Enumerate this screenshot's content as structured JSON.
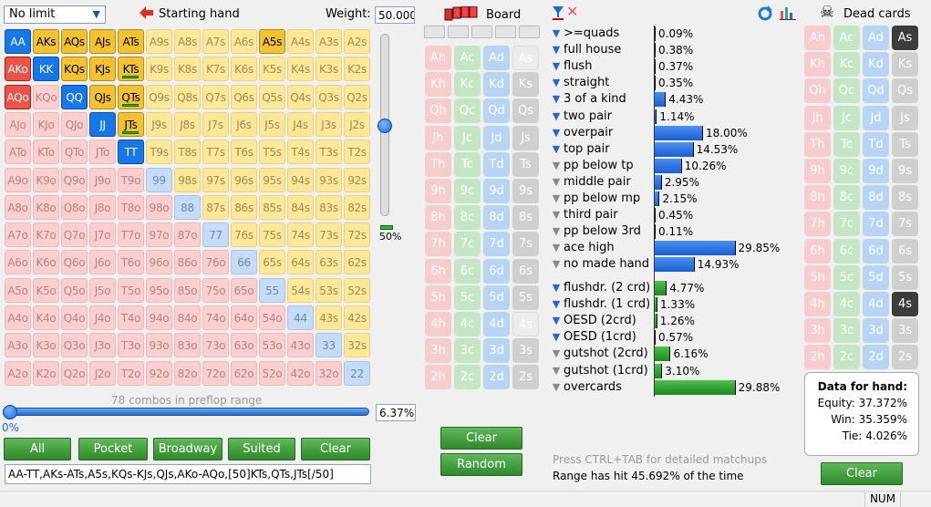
{
  "toolbar": {
    "limit_select": "No limit",
    "starting_hand_label": "Starting hand",
    "weight_label": "Weight:",
    "weight_value": "50.000",
    "board_label": "Board",
    "dead_cards_label": "Dead cards"
  },
  "hand_grid": {
    "ranks": [
      "A",
      "K",
      "Q",
      "J",
      "T",
      "9",
      "8",
      "7",
      "6",
      "5",
      "4",
      "3",
      "2"
    ],
    "full_selected": [
      "AA",
      "AKs",
      "AQs",
      "AJs",
      "ATs",
      "A5s",
      "AKo",
      "KK",
      "KQs",
      "KJs",
      "AQo",
      "QQ",
      "QJs",
      "JJ",
      "TT"
    ],
    "half_selected": [
      "KTs",
      "QTs",
      "JTs"
    ],
    "combos_caption": "78 combos in preflop range",
    "colors": {
      "suited": "#fde89a",
      "offsuit": "#fbcfcf",
      "pair": "#c6dcf4",
      "suited_sel": "#f2c230",
      "offsuit_sel": "#ee5147",
      "pair_sel": "#1877e6"
    }
  },
  "weight_slider": {
    "value_fraction": 0.5,
    "label": "50%"
  },
  "range_slider": {
    "left_label": "0%",
    "percent_value": "6.37%"
  },
  "range_buttons": [
    "All",
    "Pocket",
    "Broadway",
    "Suited",
    "Clear"
  ],
  "range_text": "AA-TT,AKs-ATs,A5s,KQs-KJs,QJs,AKo-AQo,[50]KTs,QTs,JTs[/50]",
  "board": {
    "ranks": [
      "A",
      "K",
      "Q",
      "J",
      "T",
      "9",
      "8",
      "7",
      "6",
      "5",
      "4",
      "3",
      "2"
    ],
    "disabled": [
      "As",
      "4s"
    ],
    "clear_button": "Clear",
    "random_button": "Random"
  },
  "made_hands": [
    {
      "label": ">=quads",
      "pct": "0.09%",
      "value": 0.09,
      "active": true
    },
    {
      "label": "full house",
      "pct": "0.38%",
      "value": 0.38,
      "active": true
    },
    {
      "label": "flush",
      "pct": "0.37%",
      "value": 0.37,
      "active": true
    },
    {
      "label": "straight",
      "pct": "0.35%",
      "value": 0.35,
      "active": true
    },
    {
      "label": "3 of a kind",
      "pct": "4.43%",
      "value": 4.43,
      "active": true
    },
    {
      "label": "two pair",
      "pct": "1.14%",
      "value": 1.14,
      "active": true
    },
    {
      "label": "overpair",
      "pct": "18.00%",
      "value": 18.0,
      "active": true
    },
    {
      "label": "top pair",
      "pct": "14.53%",
      "value": 14.53,
      "active": true
    },
    {
      "label": "pp below tp",
      "pct": "10.26%",
      "value": 10.26,
      "active": false
    },
    {
      "label": "middle pair",
      "pct": "2.95%",
      "value": 2.95,
      "active": false
    },
    {
      "label": "pp below mp",
      "pct": "2.15%",
      "value": 2.15,
      "active": false
    },
    {
      "label": "third pair",
      "pct": "0.45%",
      "value": 0.45,
      "active": false
    },
    {
      "label": "pp below 3rd",
      "pct": "0.11%",
      "value": 0.11,
      "active": false
    },
    {
      "label": "ace high",
      "pct": "29.85%",
      "value": 29.85,
      "active": false
    },
    {
      "label": "no made hand",
      "pct": "14.93%",
      "value": 14.93,
      "active": false
    }
  ],
  "draws": [
    {
      "label": "flushdr. (2 crd)",
      "pct": "4.77%",
      "value": 4.77,
      "active": true
    },
    {
      "label": "flushdr. (1 crd)",
      "pct": "1.33%",
      "value": 1.33,
      "active": true
    },
    {
      "label": "OESD (2crd)",
      "pct": "1.26%",
      "value": 1.26,
      "active": true
    },
    {
      "label": "OESD (1crd)",
      "pct": "0.57%",
      "value": 0.57,
      "active": true
    },
    {
      "label": "gutshot (2crd)",
      "pct": "6.16%",
      "value": 6.16,
      "active": false
    },
    {
      "label": "gutshot (1crd)",
      "pct": "3.10%",
      "value": 3.1,
      "active": false
    },
    {
      "label": "overcards",
      "pct": "29.88%",
      "value": 29.88,
      "active": false
    }
  ],
  "hint_text": "Press CTRL+TAB for detailed matchups",
  "range_hit_text": "Range has hit 45.692% of the time",
  "dead_cards": {
    "dark": [
      "As",
      "4s"
    ],
    "clear_button": "Clear"
  },
  "equity": {
    "title": "Data for hand:",
    "equity": "Equity: 37.372%",
    "win": "Win: 35.359%",
    "tie": "Tie: 4.026%"
  },
  "status": {
    "num": "NUM"
  }
}
